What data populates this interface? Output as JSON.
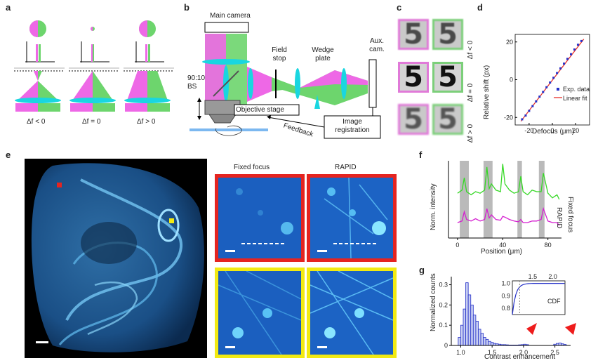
{
  "panels": {
    "a": "a",
    "b": "b",
    "c": "c",
    "d": "d",
    "e": "e",
    "f": "f",
    "g": "g"
  },
  "a": {
    "labels": [
      "Δf < 0",
      "Δf = 0",
      "Δf > 0"
    ]
  },
  "b": {
    "main_camera": "Main camera",
    "field_stop": "Field stop",
    "wedge_plate": "Wedge plate",
    "aux_cam": "Aux. cam.",
    "bs": "90:10 BS",
    "objective_stage": "Objective stage",
    "feedback": "Feedback",
    "image_registration": "Image registration"
  },
  "c": {
    "digit": "5",
    "rows": [
      "Δf < 0",
      "Δf = 0",
      "Δf > 0"
    ],
    "colors": {
      "left": "#e07ad8",
      "right": "#7ccf7a"
    }
  },
  "d": {
    "legend": [
      "Exp. data",
      "Linear fit"
    ],
    "colors": {
      "data": "#2430c8",
      "fit": "#e8302a"
    }
  },
  "e": {
    "fixed": "Fixed focus",
    "rapid": "RAPID",
    "colors": {
      "red": "#e52420",
      "yellow": "#f2ea12"
    }
  },
  "f": {
    "rapid": "RAPID",
    "fixed": "Fixed focus",
    "colors": {
      "rapid": "#35d825",
      "fixed": "#d51fd0"
    }
  },
  "g": {
    "cdf": "CDF",
    "color": "#2430c8",
    "arrow_color": "#ee1c1c"
  },
  "chart_data": [
    {
      "type": "scatter",
      "xlabel": "Defocus (μm)",
      "ylabel": "Relative shift (px)",
      "xlim": [
        -32,
        32
      ],
      "ylim": [
        -24,
        24
      ],
      "xticks": [
        -20,
        0,
        20
      ],
      "yticks": [
        -20,
        0,
        20
      ],
      "series": [
        {
          "name": "Exp. data",
          "x": [
            -26,
            -23,
            -20,
            -17,
            -14,
            -11,
            -8,
            -5,
            -2,
            1,
            4,
            7,
            10,
            13,
            16,
            19,
            22,
            25
          ],
          "y": [
            -21,
            -19,
            -16.5,
            -14,
            -11.5,
            -9,
            -6.5,
            -4,
            -1.5,
            1,
            3.5,
            6,
            8.5,
            11,
            13.5,
            16,
            18.5,
            20.5
          ]
        },
        {
          "name": "Linear fit",
          "x": [
            -27,
            27
          ],
          "y": [
            -22,
            21.5
          ]
        }
      ]
    },
    {
      "type": "line",
      "xlabel": "Position (μm)",
      "ylabel": "Norm. intensity",
      "xlim": [
        -8,
        92
      ],
      "xticks": [
        0,
        40,
        80
      ],
      "bands": [
        [
          2,
          10
        ],
        [
          23,
          31
        ],
        [
          53,
          57
        ],
        [
          72,
          77
        ]
      ],
      "series": [
        {
          "name": "RAPID",
          "x": [
            0,
            4,
            6,
            8,
            12,
            16,
            20,
            24,
            26,
            28,
            30,
            34,
            38,
            40,
            42,
            46,
            50,
            54,
            56,
            58,
            62,
            66,
            70,
            74,
            76,
            80,
            84,
            88,
            90
          ],
          "y": [
            0.58,
            0.62,
            0.78,
            0.6,
            0.56,
            0.6,
            0.58,
            0.62,
            0.92,
            0.64,
            0.7,
            0.62,
            0.6,
            0.96,
            0.7,
            0.62,
            0.58,
            0.6,
            0.8,
            0.6,
            0.56,
            0.62,
            0.6,
            0.6,
            0.84,
            0.58,
            0.52,
            0.56,
            0.5
          ]
        },
        {
          "name": "Fixed focus",
          "x": [
            0,
            4,
            6,
            8,
            12,
            16,
            20,
            24,
            26,
            28,
            30,
            34,
            38,
            40,
            42,
            46,
            50,
            54,
            56,
            58,
            62,
            66,
            70,
            74,
            76,
            80,
            84,
            88,
            90
          ],
          "y": [
            0.2,
            0.22,
            0.34,
            0.24,
            0.22,
            0.25,
            0.22,
            0.24,
            0.38,
            0.26,
            0.3,
            0.24,
            0.23,
            0.28,
            0.27,
            0.24,
            0.22,
            0.21,
            0.24,
            0.2,
            0.2,
            0.22,
            0.22,
            0.24,
            0.38,
            0.22,
            0.2,
            0.2,
            0.16
          ]
        }
      ]
    },
    {
      "type": "bar",
      "xlabel": "Contrast enhancement",
      "ylabel": "Normalized counts",
      "xlim": [
        0.85,
        2.75
      ],
      "xticks": [
        1.0,
        1.5,
        2.0,
        2.5
      ],
      "yticks": [
        0,
        0.1,
        0.2,
        0.3
      ],
      "bins": [
        0.98,
        1.02,
        1.06,
        1.1,
        1.14,
        1.18,
        1.22,
        1.26,
        1.3,
        1.34,
        1.38,
        1.42,
        1.46,
        1.5,
        1.54,
        1.58,
        1.62,
        1.66,
        1.7,
        1.74,
        1.78,
        1.82,
        1.86,
        1.9,
        1.94,
        1.98,
        2.02,
        2.06,
        2.5,
        2.54,
        2.58,
        2.62,
        2.66
      ],
      "values": [
        0.04,
        0.1,
        0.18,
        0.31,
        0.25,
        0.2,
        0.15,
        0.12,
        0.08,
        0.06,
        0.04,
        0.03,
        0.02,
        0.015,
        0.01,
        0.008,
        0.006,
        0.004,
        0.004,
        0.003,
        0.002,
        0.002,
        0.002,
        0.002,
        0.003,
        0.004,
        0.006,
        0.004,
        0.006,
        0.01,
        0.012,
        0.008,
        0.005
      ],
      "inset": {
        "type": "line",
        "label": "CDF",
        "xticks": [
          1.5,
          2.0
        ],
        "yticks": [
          0.8,
          0.9,
          1.0
        ]
      }
    }
  ]
}
